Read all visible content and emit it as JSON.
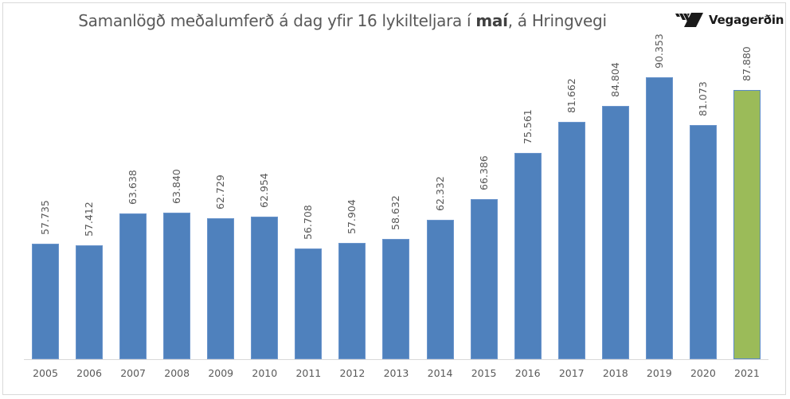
{
  "chart_data": {
    "type": "bar",
    "title": "Samanlögð meðalumferð á dag yfir 16 lykilteljara í maí, á Hringvegi",
    "title_parts": {
      "before": "Samanlögð meðalumferð á dag yfir 16 lykilteljara í ",
      "bold": "maí",
      "after": ", á Hringvegi"
    },
    "xlabel": "",
    "ylabel": "",
    "categories": [
      "2005",
      "2006",
      "2007",
      "2008",
      "2009",
      "2010",
      "2011",
      "2012",
      "2013",
      "2014",
      "2015",
      "2016",
      "2017",
      "2018",
      "2019",
      "2020",
      "2021"
    ],
    "values": [
      57735,
      57412,
      63638,
      63840,
      62729,
      62954,
      56708,
      57904,
      58632,
      62332,
      66386,
      75561,
      81662,
      84804,
      90353,
      81073,
      87880
    ],
    "value_labels": [
      "57.735",
      "57.412",
      "63.638",
      "63.840",
      "62.729",
      "62.954",
      "56.708",
      "57.904",
      "58.632",
      "62.332",
      "66.386",
      "75.561",
      "81.662",
      "84.804",
      "90.353",
      "81.073",
      "87.880"
    ],
    "ylim": [
      35000,
      95000
    ],
    "grid": false,
    "legend": null,
    "colors": {
      "default": "#4f81bd",
      "highlight": "#9bbb59",
      "highlight_category": "2021"
    }
  },
  "logo": {
    "text": "Vegagerðin"
  }
}
